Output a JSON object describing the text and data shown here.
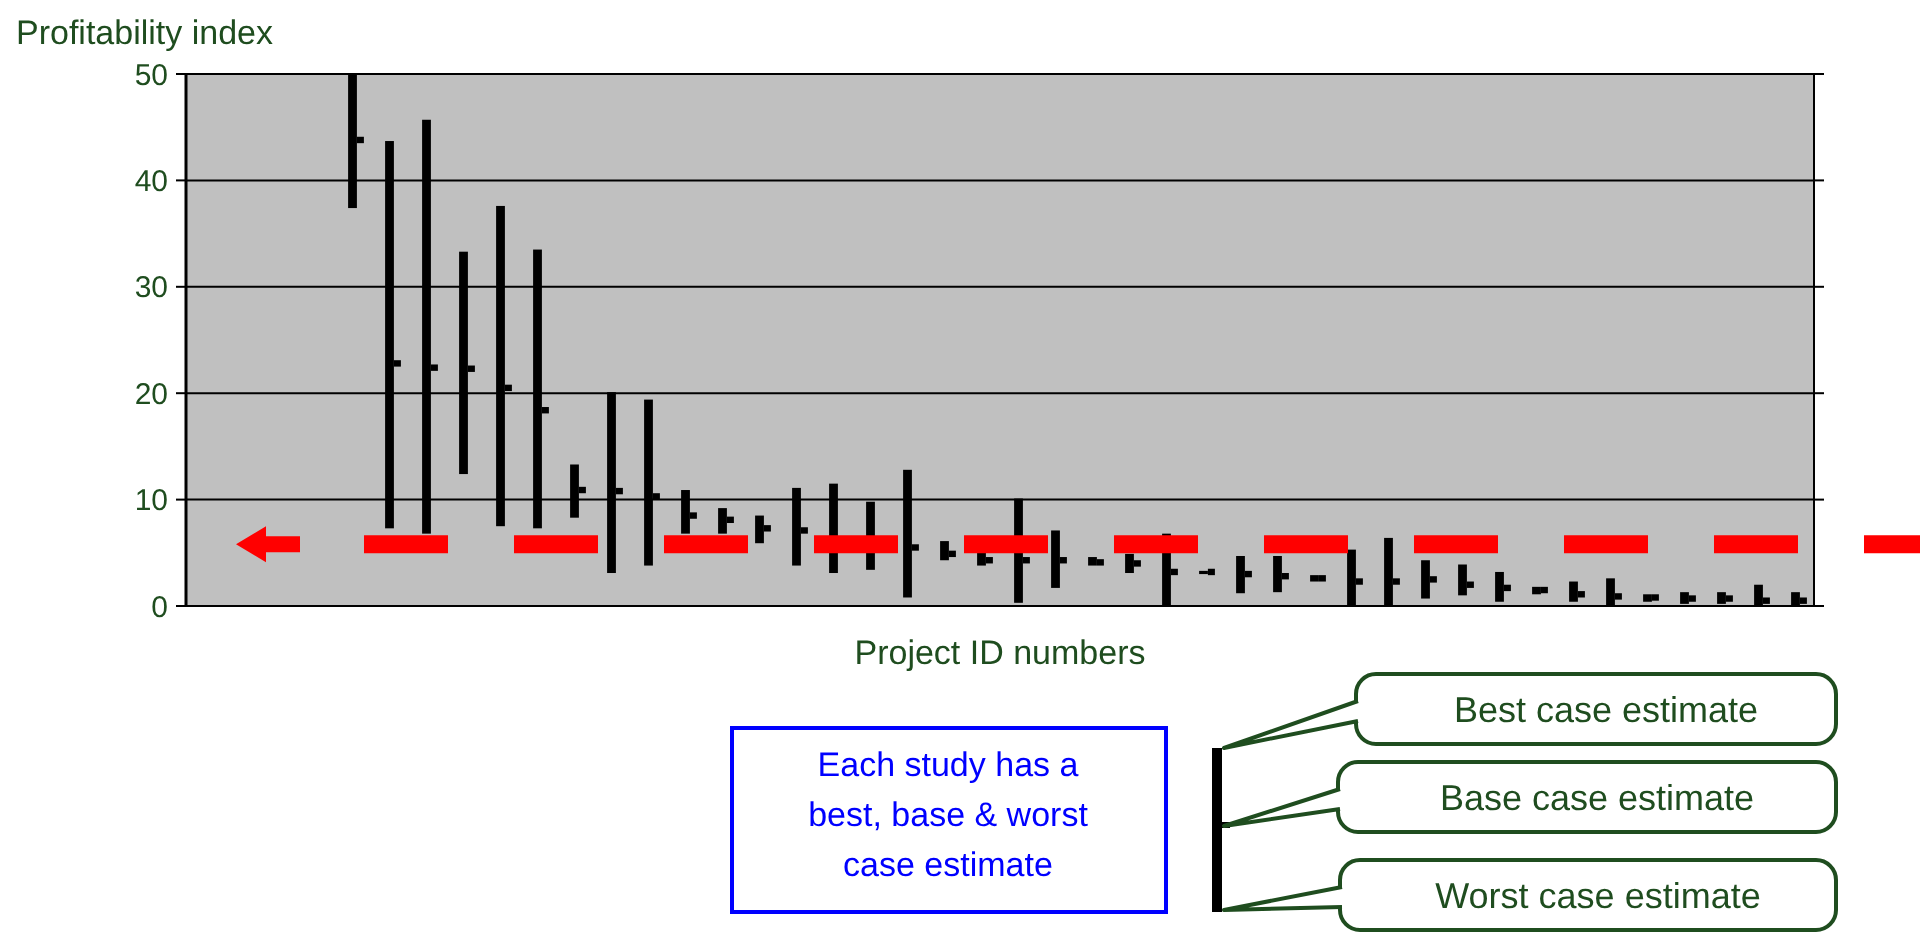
{
  "chart_data": {
    "type": "bar",
    "xlabel": "Project ID numbers",
    "ylabel": "Profitability index",
    "categories": [
      null,
      null,
      null,
      null,
      null,
      null,
      null,
      null,
      null,
      null,
      null,
      null,
      null,
      null,
      null,
      null,
      null,
      null,
      null,
      null,
      null,
      null,
      null,
      null,
      null,
      null,
      null,
      null,
      null,
      null,
      null,
      null,
      null,
      null,
      null,
      null,
      null,
      null,
      null,
      null,
      null,
      null,
      null,
      null
    ],
    "series": [
      {
        "color": "#000000",
        "base": [
          null,
          null,
          null,
          null,
          37.4,
          7.3,
          6.8,
          12.4,
          7.5,
          7.3,
          8.3,
          3.1,
          3.8,
          6.8,
          6.8,
          5.9,
          3.8,
          3.1,
          3.4,
          0.8,
          4.3,
          3.8,
          0.3,
          1.7,
          3.8,
          3.1,
          0,
          3.0,
          1.2,
          1.3,
          2.3,
          0,
          0,
          0.7,
          1.0,
          0.4,
          1.1,
          0.4,
          0,
          0.4,
          0.2,
          0.2,
          0,
          0
        ],
        "values": [
          null,
          null,
          null,
          null,
          12.6,
          36.4,
          38.9,
          20.9,
          30.1,
          26.2,
          5.0,
          17.0,
          15.6,
          4.1,
          2.4,
          2.6,
          7.3,
          8.4,
          6.4,
          12.0,
          1.8,
          1.5,
          9.8,
          5.4,
          0.8,
          1.8,
          6.8,
          0.3,
          3.5,
          3.4,
          0.6,
          5.3,
          6.4,
          3.6,
          2.9,
          2.8,
          0.7,
          1.9,
          2.6,
          0.7,
          1.1,
          1.1,
          2.0,
          1.3
        ]
      },
      {
        "type": "scatter",
        "color": "#000000",
        "marker": "square",
        "values": [
          null,
          null,
          null,
          null,
          43.8,
          22.8,
          22.4,
          22.3,
          20.5,
          18.4,
          10.9,
          10.8,
          10.3,
          8.5,
          8.1,
          7.3,
          7.1,
          null,
          null,
          5.5,
          4.9,
          4.3,
          4.3,
          4.3,
          4.1,
          4.0,
          3.2,
          3.2,
          3.0,
          2.8,
          2.6,
          2.3,
          2.3,
          2.5,
          2.0,
          1.7,
          1.5,
          1.1,
          0.9,
          0.8,
          0.7,
          0.7,
          0.5,
          0.5
        ]
      }
    ],
    "ylim": [
      0,
      50
    ],
    "yticks": [
      0,
      10,
      20,
      30,
      40,
      50
    ],
    "grid": "y",
    "ref_lines": [
      {
        "axis": "y",
        "value": 5.8,
        "color": "#ff0000",
        "line_style": "dashed"
      }
    ],
    "annotations": [
      "Each study has a best, base & worst case estimate",
      "Best case estimate",
      "Base case estimate",
      "Worst case estimate"
    ]
  }
}
